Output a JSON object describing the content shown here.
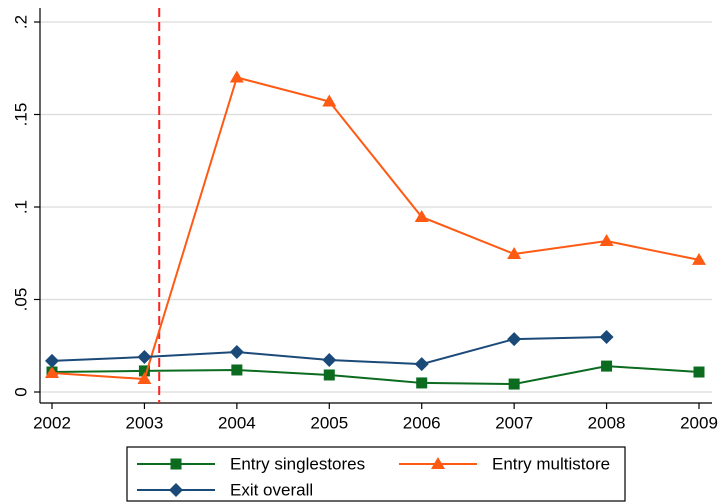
{
  "chart_data": {
    "type": "line",
    "x": [
      2002,
      2003,
      2004,
      2005,
      2006,
      2007,
      2008,
      2009
    ],
    "xlim": [
      2002,
      2009
    ],
    "xticks": [
      2002,
      2003,
      2004,
      2005,
      2006,
      2007,
      2008,
      2009
    ],
    "ylim": [
      0,
      0.2
    ],
    "yticks": [
      0,
      {
        "value": 0.05,
        "label": ".05"
      },
      {
        "value": 0.1,
        "label": ".1"
      },
      {
        "value": 0.15,
        "label": ".15"
      },
      {
        "value": 0.2,
        "label": ".2"
      }
    ],
    "grid": true,
    "xline": 2003.16,
    "xline_color": "#ff2020",
    "series": [
      {
        "name": "Entry singlestores",
        "color": "#0b6b1f",
        "marker": "square",
        "values": [
          0.0108,
          0.0114,
          0.0119,
          0.0092,
          0.0049,
          0.0043,
          0.014,
          0.0108
        ]
      },
      {
        "name": "Entry multistore",
        "color": "#ff5a14",
        "marker": "triangle",
        "values": [
          0.0103,
          0.007,
          0.17,
          0.157,
          0.0946,
          0.0746,
          0.0816,
          0.0714
        ]
      },
      {
        "name": "Exit overall",
        "color": "#1c4a78",
        "marker": "diamond",
        "values": [
          0.0168,
          0.0189,
          0.0216,
          0.0173,
          0.0151,
          0.0286,
          0.0297,
          null
        ]
      }
    ]
  }
}
